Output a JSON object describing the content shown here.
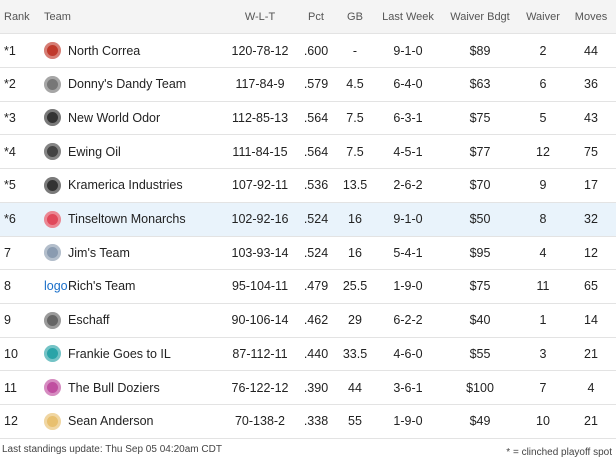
{
  "table": {
    "columns": [
      "Rank",
      "Team",
      "W-L-T",
      "Pct",
      "GB",
      "Last Week",
      "Waiver Bdgt",
      "Waiver",
      "Moves"
    ],
    "rows": [
      {
        "rank": "*1",
        "team": "North Correa",
        "wlt": "120-78-12",
        "pct": ".600",
        "gb": "-",
        "last_week": "9-1-0",
        "waiver_bdgt": "$89",
        "waiver": "2",
        "moves": "44"
      },
      {
        "rank": "*2",
        "team": "Donny's Dandy Team",
        "wlt": "117-84-9",
        "pct": ".579",
        "gb": "4.5",
        "last_week": "6-4-0",
        "waiver_bdgt": "$63",
        "waiver": "6",
        "moves": "36"
      },
      {
        "rank": "*3",
        "team": "New World Odor",
        "wlt": "112-85-13",
        "pct": ".564",
        "gb": "7.5",
        "last_week": "6-3-1",
        "waiver_bdgt": "$75",
        "waiver": "5",
        "moves": "43"
      },
      {
        "rank": "*4",
        "team": "Ewing Oil",
        "wlt": "111-84-15",
        "pct": ".564",
        "gb": "7.5",
        "last_week": "4-5-1",
        "waiver_bdgt": "$77",
        "waiver": "12",
        "moves": "75"
      },
      {
        "rank": "*5",
        "team": "Kramerica Industries",
        "wlt": "107-92-11",
        "pct": ".536",
        "gb": "13.5",
        "last_week": "2-6-2",
        "waiver_bdgt": "$70",
        "waiver": "9",
        "moves": "17"
      },
      {
        "rank": "*6",
        "team": "Tinseltown Monarchs",
        "wlt": "102-92-16",
        "pct": ".524",
        "gb": "16",
        "last_week": "9-1-0",
        "waiver_bdgt": "$50",
        "waiver": "8",
        "moves": "32",
        "highlight": true
      },
      {
        "rank": "7",
        "team": "Jim's Team",
        "wlt": "103-93-14",
        "pct": ".524",
        "gb": "16",
        "last_week": "5-4-1",
        "waiver_bdgt": "$95",
        "waiver": "4",
        "moves": "12"
      },
      {
        "rank": "8",
        "team": "Rich's Team",
        "logo_text": "logo",
        "wlt": "95-104-11",
        "pct": ".479",
        "gb": "25.5",
        "last_week": "1-9-0",
        "waiver_bdgt": "$75",
        "waiver": "11",
        "moves": "65"
      },
      {
        "rank": "9",
        "team": "Eschaff",
        "wlt": "90-106-14",
        "pct": ".462",
        "gb": "29",
        "last_week": "6-2-2",
        "waiver_bdgt": "$40",
        "waiver": "1",
        "moves": "14"
      },
      {
        "rank": "10",
        "team": "Frankie Goes to IL",
        "wlt": "87-112-11",
        "pct": ".440",
        "gb": "33.5",
        "last_week": "4-6-0",
        "waiver_bdgt": "$55",
        "waiver": "3",
        "moves": "21"
      },
      {
        "rank": "11",
        "team": "The Bull Doziers",
        "wlt": "76-122-12",
        "pct": ".390",
        "gb": "44",
        "last_week": "3-6-1",
        "waiver_bdgt": "$100",
        "waiver": "7",
        "moves": "4"
      },
      {
        "rank": "12",
        "team": "Sean Anderson",
        "wlt": "70-138-2",
        "pct": ".338",
        "gb": "55",
        "last_week": "1-9-0",
        "waiver_bdgt": "$49",
        "waiver": "10",
        "moves": "21"
      }
    ]
  },
  "footer": {
    "update": "Last standings update: Thu Sep 05 04:20am CDT",
    "note": "* = clinched playoff spot"
  }
}
